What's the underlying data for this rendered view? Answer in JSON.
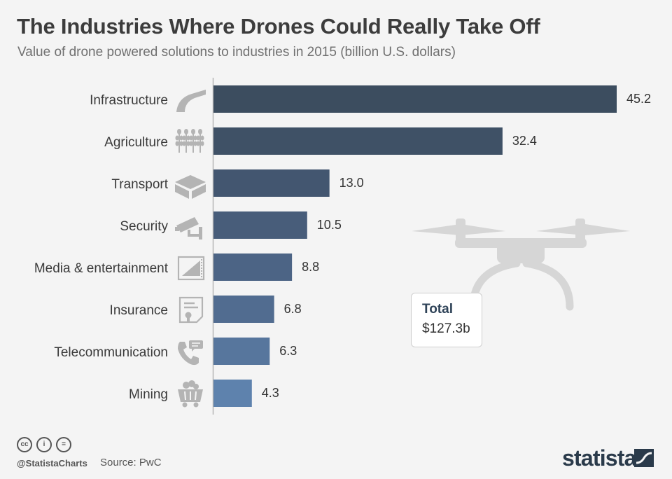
{
  "title": "The Industries Where Drones Could Really Take Off",
  "subtitle": "Value of drone powered solutions to industries in 2015 (billion U.S. dollars)",
  "chart_data": {
    "type": "bar",
    "orientation": "horizontal",
    "categories": [
      "Infrastructure",
      "Agriculture",
      "Transport",
      "Security",
      "Media & entertainment",
      "Insurance",
      "Telecommunication",
      "Mining"
    ],
    "values": [
      45.2,
      32.4,
      13.0,
      10.5,
      8.8,
      6.8,
      6.3,
      4.3
    ],
    "value_labels": [
      "45.2",
      "32.4",
      "13.0",
      "10.5",
      "8.8",
      "6.8",
      "6.3",
      "4.3"
    ],
    "colors": [
      "#3c4d5f",
      "#3f5166",
      "#435670",
      "#485d7a",
      "#4c6485",
      "#516c90",
      "#57769d",
      "#5e82ad"
    ],
    "xlim": [
      0,
      45.2
    ],
    "grid": false,
    "legend": "none"
  },
  "icons": [
    "road-icon",
    "wheat-icon",
    "package-icon",
    "security-camera-icon",
    "film-icon",
    "certificate-icon",
    "phone-icon",
    "mining-cart-icon"
  ],
  "total": {
    "title": "Total",
    "value": "$127.3b"
  },
  "footer": {
    "handle": "@StatistaCharts",
    "source": "Source: PwC",
    "logo": "statista"
  }
}
